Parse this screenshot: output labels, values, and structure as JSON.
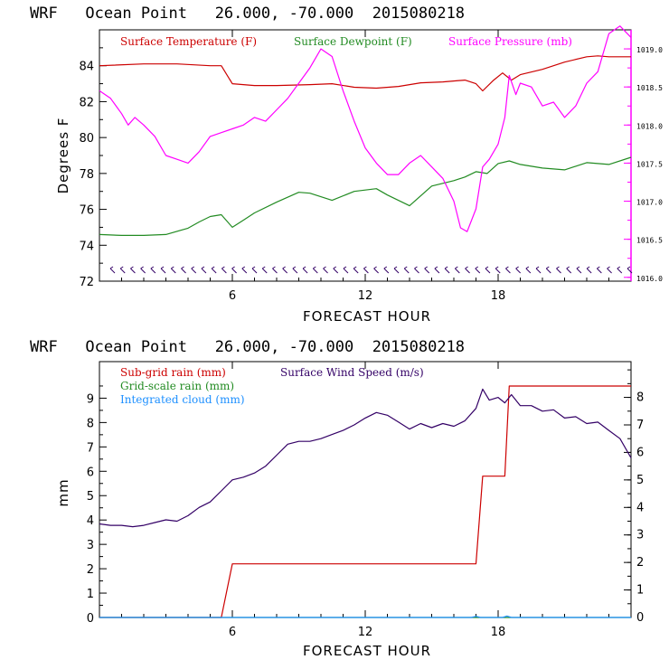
{
  "chart_data": [
    {
      "type": "line",
      "title": "WRF   Ocean Point   26.000, -70.000  2015080218",
      "xlabel": "FORECAST HOUR",
      "ylabel": "Degrees F",
      "xlim": [
        0,
        24
      ],
      "ylim": [
        72,
        86
      ],
      "y2lim": [
        1015.95,
        1019.25
      ],
      "x_ticks": [
        "6",
        "12",
        "18"
      ],
      "y_ticks": [
        "72",
        "74",
        "76",
        "78",
        "80",
        "82",
        "84"
      ],
      "y2_ticks": [
        "1016.0",
        "1016.5",
        "1017.0",
        "1017.5",
        "1018.0",
        "1018.5",
        "1019.0"
      ],
      "colors": {
        "temperature": "#cc0000",
        "dewpoint": "#228b22",
        "pressure": "#ff00ff",
        "axis_right": "#ff00ff",
        "wind_barbs": "#330066"
      },
      "legend": [
        "Surface Temperature (F)",
        "Surface Dewpoint (F)",
        "Surface Pressure (mb)"
      ],
      "series": [
        {
          "name": "Surface Temperature (F)",
          "axis": "left",
          "x": [
            0,
            2,
            3.5,
            5,
            5.5,
            6,
            7,
            8,
            9.5,
            10.5,
            11.5,
            12.5,
            13.5,
            14.5,
            15.5,
            16.5,
            17,
            17.3,
            17.8,
            18.2,
            18.6,
            19,
            20,
            21,
            22,
            22.5,
            23,
            24
          ],
          "y": [
            84.0,
            84.1,
            84.1,
            84.0,
            84.0,
            83.0,
            82.9,
            82.9,
            82.95,
            83.0,
            82.8,
            82.75,
            82.85,
            83.05,
            83.1,
            83.2,
            83.0,
            82.6,
            83.2,
            83.6,
            83.2,
            83.5,
            83.8,
            84.2,
            84.5,
            84.55,
            84.5,
            84.5
          ]
        },
        {
          "name": "Surface Dewpoint (F)",
          "axis": "left",
          "x": [
            0,
            1,
            2,
            3,
            4,
            4.5,
            5,
            5.5,
            6,
            6.5,
            7,
            8,
            9,
            9.5,
            10.5,
            11.5,
            12.5,
            13,
            14,
            15,
            16,
            16.5,
            17,
            17.5,
            18,
            18.5,
            19,
            20,
            21,
            22,
            23,
            24
          ],
          "y": [
            74.6,
            74.55,
            74.55,
            74.6,
            74.95,
            75.3,
            75.6,
            75.7,
            75.0,
            75.4,
            75.8,
            76.4,
            76.95,
            76.9,
            76.5,
            77.0,
            77.15,
            76.8,
            76.2,
            77.3,
            77.6,
            77.8,
            78.1,
            78.0,
            78.55,
            78.7,
            78.5,
            78.3,
            78.2,
            78.6,
            78.5,
            78.9
          ]
        },
        {
          "name": "Surface Pressure (mb)",
          "axis": "right",
          "x": [
            0,
            0.5,
            1,
            1.3,
            1.6,
            2,
            2.5,
            3,
            3.5,
            4,
            4.5,
            5,
            5.5,
            6,
            6.5,
            7,
            7.5,
            8,
            8.5,
            9,
            9.5,
            10,
            10.5,
            11,
            11.5,
            12,
            12.5,
            13,
            13.5,
            14,
            14.5,
            15,
            15.5,
            16,
            16.3,
            16.6,
            17,
            17.3,
            17.6,
            18,
            18.3,
            18.5,
            18.8,
            19,
            19.5,
            20,
            20.5,
            21,
            21.5,
            22,
            22.5,
            23,
            23.5,
            24
          ],
          "y": [
            1018.45,
            1018.35,
            1018.15,
            1018.0,
            1018.1,
            1018.0,
            1017.85,
            1017.6,
            1017.55,
            1017.5,
            1017.65,
            1017.85,
            1017.9,
            1017.95,
            1018.0,
            1018.1,
            1018.05,
            1018.2,
            1018.35,
            1018.55,
            1018.75,
            1019.0,
            1018.9,
            1018.45,
            1018.05,
            1017.7,
            1017.5,
            1017.35,
            1017.35,
            1017.5,
            1017.6,
            1017.45,
            1017.3,
            1017.0,
            1016.65,
            1016.6,
            1016.9,
            1017.45,
            1017.55,
            1017.75,
            1018.1,
            1018.65,
            1018.4,
            1018.55,
            1018.5,
            1018.25,
            1018.3,
            1018.1,
            1018.25,
            1018.55,
            1018.7,
            1019.2,
            1019.3,
            1019.15
          ]
        }
      ]
    },
    {
      "type": "line",
      "title": "WRF   Ocean Point   26.000, -70.000  2015080218",
      "xlabel": "FORECAST HOUR",
      "ylabel": "mm",
      "xlim": [
        0,
        24
      ],
      "ylim": [
        0,
        10.5
      ],
      "y2lim": [
        0,
        9.3
      ],
      "x_ticks": [
        "6",
        "12",
        "18"
      ],
      "y_ticks": [
        "0",
        "1",
        "2",
        "3",
        "4",
        "5",
        "6",
        "7",
        "8",
        "9"
      ],
      "y2_ticks": [
        "0",
        "1",
        "2",
        "3",
        "4",
        "5",
        "6",
        "7",
        "8"
      ],
      "colors": {
        "subgrid": "#cc0000",
        "gridscale": "#228b22",
        "cloud": "#1e90ff",
        "wind": "#330066"
      },
      "legend": [
        "Sub-grid rain (mm)",
        "Surface Wind Speed (m/s)",
        "Grid-scale rain (mm)",
        "Integrated cloud (mm)"
      ],
      "series": [
        {
          "name": "Sub-grid rain (mm)",
          "axis": "left",
          "x": [
            0,
            5.5,
            6,
            17,
            17.3,
            18.3,
            18.5,
            24
          ],
          "y": [
            0,
            0,
            2.2,
            2.2,
            5.8,
            5.8,
            9.5,
            9.5
          ]
        },
        {
          "name": "Surface Wind Speed (m/s)",
          "axis": "right",
          "x": [
            0,
            0.5,
            1,
            1.5,
            2,
            2.5,
            3,
            3.5,
            4,
            4.5,
            5,
            5.5,
            6,
            6.5,
            7,
            7.5,
            8,
            8.5,
            9,
            9.5,
            10,
            10.5,
            11,
            11.5,
            12,
            12.5,
            13,
            13.5,
            14,
            14.5,
            15,
            15.5,
            16,
            16.5,
            17,
            17.3,
            17.6,
            18,
            18.3,
            18.6,
            19,
            19.5,
            20,
            20.5,
            21,
            21.5,
            22,
            22.5,
            23,
            23.5,
            24
          ],
          "y": [
            3.4,
            3.35,
            3.35,
            3.3,
            3.35,
            3.45,
            3.55,
            3.5,
            3.7,
            4.0,
            4.2,
            4.6,
            5.0,
            5.1,
            5.25,
            5.5,
            5.9,
            6.3,
            6.4,
            6.4,
            6.5,
            6.65,
            6.8,
            7.0,
            7.25,
            7.45,
            7.35,
            7.1,
            6.85,
            7.05,
            6.9,
            7.05,
            6.95,
            7.15,
            7.6,
            8.3,
            7.9,
            8.0,
            7.8,
            8.1,
            7.7,
            7.7,
            7.5,
            7.55,
            7.25,
            7.3,
            7.05,
            7.1,
            6.8,
            6.5,
            5.8
          ]
        },
        {
          "name": "Grid-scale rain (mm)",
          "axis": "left",
          "x": [
            0,
            24
          ],
          "y": [
            0,
            0
          ]
        },
        {
          "name": "Integrated cloud (mm)",
          "axis": "left",
          "x": [
            0,
            16.8,
            17,
            17.2,
            18.2,
            18.4,
            18.6,
            24
          ],
          "y": [
            0,
            0,
            0.05,
            0,
            0,
            0.06,
            0,
            0
          ]
        }
      ]
    }
  ]
}
